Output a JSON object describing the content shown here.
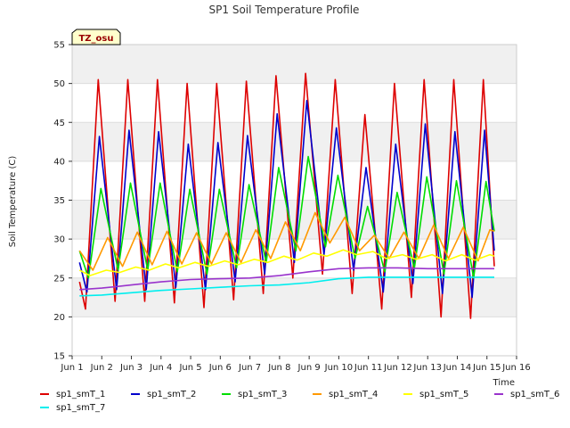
{
  "chart_data": {
    "type": "line",
    "title": "SP1 Soil Temperature Profile",
    "xlabel": "Time",
    "ylabel": "Soil Temperature (C)",
    "badge": "TZ_osu",
    "xlim": [
      1,
      16
    ],
    "ylim": [
      15,
      55
    ],
    "x_ticks": [
      {
        "v": 1,
        "label": "Jun 1"
      },
      {
        "v": 2,
        "label": "Jun 2"
      },
      {
        "v": 3,
        "label": "Jun 3"
      },
      {
        "v": 4,
        "label": "Jun 4"
      },
      {
        "v": 5,
        "label": "Jun 5"
      },
      {
        "v": 6,
        "label": "Jun 6"
      },
      {
        "v": 7,
        "label": "Jun 7"
      },
      {
        "v": 8,
        "label": "Jun 8"
      },
      {
        "v": 9,
        "label": "Jun 9"
      },
      {
        "v": 10,
        "label": "Jun 10"
      },
      {
        "v": 11,
        "label": "Jun 11"
      },
      {
        "v": 12,
        "label": "Jun 12"
      },
      {
        "v": 13,
        "label": "Jun 13"
      },
      {
        "v": 14,
        "label": "Jun 14"
      },
      {
        "v": 15,
        "label": "Jun 15"
      },
      {
        "v": 16,
        "label": "Jun 16"
      }
    ],
    "y_ticks": [
      {
        "v": 15,
        "label": "15"
      },
      {
        "v": 20,
        "label": "20"
      },
      {
        "v": 25,
        "label": "25"
      },
      {
        "v": 30,
        "label": "30"
      },
      {
        "v": 35,
        "label": "35"
      },
      {
        "v": 40,
        "label": "40"
      },
      {
        "v": 45,
        "label": "45"
      },
      {
        "v": 50,
        "label": "50"
      },
      {
        "v": 55,
        "label": "55"
      }
    ],
    "grid": true,
    "legend_position": "bottom",
    "series": [
      {
        "name": "sp1_smT_1",
        "color": "#dd0000",
        "points": [
          [
            1.25,
            24.5
          ],
          [
            1.45,
            21.0
          ],
          [
            1.88,
            50.5
          ],
          [
            2.45,
            22.0
          ],
          [
            2.88,
            50.5
          ],
          [
            3.45,
            22.0
          ],
          [
            3.88,
            50.5
          ],
          [
            4.45,
            21.8
          ],
          [
            4.88,
            50.0
          ],
          [
            5.45,
            21.2
          ],
          [
            5.88,
            50.0
          ],
          [
            6.45,
            22.2
          ],
          [
            6.88,
            50.3
          ],
          [
            7.45,
            23.0
          ],
          [
            7.88,
            51.0
          ],
          [
            8.45,
            25.0
          ],
          [
            8.88,
            51.3
          ],
          [
            9.45,
            25.5
          ],
          [
            9.88,
            50.5
          ],
          [
            10.45,
            23.0
          ],
          [
            10.88,
            46.0
          ],
          [
            11.45,
            21.0
          ],
          [
            11.88,
            50.0
          ],
          [
            12.45,
            22.5
          ],
          [
            12.88,
            50.5
          ],
          [
            13.45,
            20.0
          ],
          [
            13.88,
            50.5
          ],
          [
            14.45,
            19.8
          ],
          [
            14.88,
            50.5
          ],
          [
            15.25,
            26.5
          ]
        ]
      },
      {
        "name": "sp1_smT_2",
        "color": "#0000cc",
        "points": [
          [
            1.25,
            27.0
          ],
          [
            1.5,
            23.2
          ],
          [
            1.92,
            43.2
          ],
          [
            2.5,
            23.5
          ],
          [
            2.92,
            44.0
          ],
          [
            3.5,
            23.5
          ],
          [
            3.92,
            43.8
          ],
          [
            4.5,
            23.8
          ],
          [
            4.92,
            42.2
          ],
          [
            5.5,
            23.5
          ],
          [
            5.92,
            42.4
          ],
          [
            6.5,
            24.5
          ],
          [
            6.92,
            43.3
          ],
          [
            7.5,
            25.5
          ],
          [
            7.92,
            46.1
          ],
          [
            8.5,
            27.0
          ],
          [
            8.92,
            47.8
          ],
          [
            9.5,
            28.0
          ],
          [
            9.92,
            44.3
          ],
          [
            10.5,
            26.0
          ],
          [
            10.92,
            39.2
          ],
          [
            11.5,
            23.2
          ],
          [
            11.92,
            42.2
          ],
          [
            12.5,
            24.3
          ],
          [
            12.92,
            44.8
          ],
          [
            13.5,
            23.0
          ],
          [
            13.92,
            43.8
          ],
          [
            14.5,
            22.5
          ],
          [
            14.92,
            44.0
          ],
          [
            15.25,
            28.5
          ]
        ]
      },
      {
        "name": "sp1_smT_3",
        "color": "#00dd00",
        "points": [
          [
            1.25,
            28.5
          ],
          [
            1.55,
            25.0
          ],
          [
            1.97,
            36.5
          ],
          [
            2.55,
            26.0
          ],
          [
            2.97,
            37.2
          ],
          [
            3.55,
            26.0
          ],
          [
            3.97,
            37.2
          ],
          [
            4.55,
            25.8
          ],
          [
            4.97,
            36.4
          ],
          [
            5.55,
            25.5
          ],
          [
            5.97,
            36.4
          ],
          [
            6.55,
            26.3
          ],
          [
            6.97,
            37.0
          ],
          [
            7.55,
            27.0
          ],
          [
            7.97,
            39.2
          ],
          [
            8.55,
            28.5
          ],
          [
            8.97,
            40.6
          ],
          [
            9.55,
            29.0
          ],
          [
            9.97,
            38.2
          ],
          [
            10.55,
            27.5
          ],
          [
            10.97,
            34.2
          ],
          [
            11.55,
            25.8
          ],
          [
            11.97,
            36.0
          ],
          [
            12.55,
            26.2
          ],
          [
            12.97,
            38.0
          ],
          [
            13.55,
            25.5
          ],
          [
            13.97,
            37.5
          ],
          [
            14.55,
            25.0
          ],
          [
            14.97,
            37.4
          ],
          [
            15.25,
            31.0
          ]
        ]
      },
      {
        "name": "sp1_smT_4",
        "color": "#ff9900",
        "points": [
          [
            1.25,
            28.5
          ],
          [
            1.7,
            26.0
          ],
          [
            2.2,
            30.2
          ],
          [
            2.7,
            26.5
          ],
          [
            3.2,
            30.9
          ],
          [
            3.7,
            26.7
          ],
          [
            4.2,
            31.0
          ],
          [
            4.7,
            26.8
          ],
          [
            5.2,
            30.8
          ],
          [
            5.7,
            26.8
          ],
          [
            6.2,
            30.8
          ],
          [
            6.7,
            27.0
          ],
          [
            7.2,
            31.2
          ],
          [
            7.7,
            27.5
          ],
          [
            8.2,
            32.2
          ],
          [
            8.7,
            28.5
          ],
          [
            9.2,
            33.4
          ],
          [
            9.7,
            29.5
          ],
          [
            10.2,
            32.8
          ],
          [
            10.7,
            28.5
          ],
          [
            11.2,
            30.5
          ],
          [
            11.7,
            27.5
          ],
          [
            12.2,
            30.9
          ],
          [
            12.7,
            27.5
          ],
          [
            13.2,
            31.8
          ],
          [
            13.7,
            27.5
          ],
          [
            14.2,
            31.5
          ],
          [
            14.7,
            27.2
          ],
          [
            15.1,
            31.2
          ],
          [
            15.25,
            31.0
          ]
        ]
      },
      {
        "name": "sp1_smT_5",
        "color": "#ffff00",
        "points": [
          [
            1.25,
            26.0
          ],
          [
            1.6,
            25.3
          ],
          [
            2.15,
            26.0
          ],
          [
            2.6,
            25.7
          ],
          [
            3.15,
            26.4
          ],
          [
            3.6,
            26.0
          ],
          [
            4.15,
            26.8
          ],
          [
            4.6,
            26.3
          ],
          [
            5.15,
            27.0
          ],
          [
            5.6,
            26.5
          ],
          [
            6.15,
            27.2
          ],
          [
            6.6,
            26.7
          ],
          [
            7.15,
            27.4
          ],
          [
            7.6,
            27.0
          ],
          [
            8.15,
            27.8
          ],
          [
            8.6,
            27.3
          ],
          [
            9.15,
            28.2
          ],
          [
            9.6,
            27.8
          ],
          [
            10.15,
            28.6
          ],
          [
            10.6,
            28.0
          ],
          [
            11.15,
            28.4
          ],
          [
            11.6,
            27.5
          ],
          [
            12.15,
            28.0
          ],
          [
            12.6,
            27.4
          ],
          [
            13.15,
            28.0
          ],
          [
            13.6,
            27.2
          ],
          [
            14.15,
            28.0
          ],
          [
            14.6,
            27.3
          ],
          [
            15.1,
            28.0
          ],
          [
            15.25,
            27.8
          ]
        ]
      },
      {
        "name": "sp1_smT_6",
        "color": "#9933cc",
        "points": [
          [
            1.25,
            23.5
          ],
          [
            2.0,
            23.7
          ],
          [
            3.0,
            24.1
          ],
          [
            4.0,
            24.5
          ],
          [
            5.0,
            24.8
          ],
          [
            6.0,
            24.9
          ],
          [
            7.0,
            25.0
          ],
          [
            8.0,
            25.3
          ],
          [
            9.0,
            25.8
          ],
          [
            10.0,
            26.2
          ],
          [
            11.0,
            26.3
          ],
          [
            12.0,
            26.3
          ],
          [
            13.0,
            26.2
          ],
          [
            14.0,
            26.2
          ],
          [
            15.25,
            26.2
          ]
        ]
      },
      {
        "name": "sp1_smT_7",
        "color": "#00eeee",
        "points": [
          [
            1.25,
            22.7
          ],
          [
            2.0,
            22.8
          ],
          [
            3.0,
            23.1
          ],
          [
            4.0,
            23.4
          ],
          [
            5.0,
            23.6
          ],
          [
            6.0,
            23.8
          ],
          [
            7.0,
            24.0
          ],
          [
            8.0,
            24.1
          ],
          [
            9.0,
            24.4
          ],
          [
            10.0,
            24.9
          ],
          [
            11.0,
            25.1
          ],
          [
            12.0,
            25.1
          ],
          [
            13.0,
            25.1
          ],
          [
            14.0,
            25.1
          ],
          [
            15.25,
            25.1
          ]
        ]
      }
    ]
  }
}
